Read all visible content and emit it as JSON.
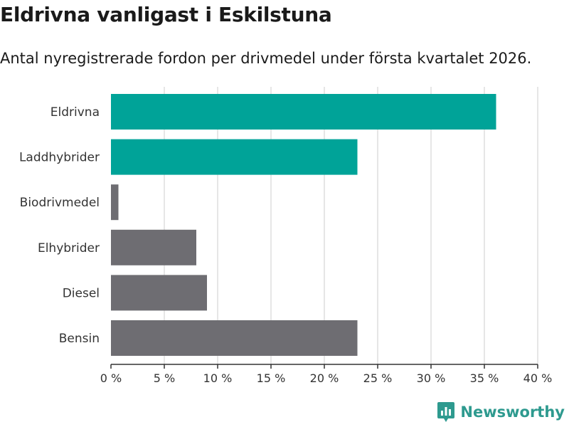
{
  "header": {
    "title": "Eldrivna vanligast i Eskilstuna",
    "subtitle": "Antal nyregistrerade fordon per drivmedel under första kvartalet 2026."
  },
  "brand": {
    "name": "Newsworthy",
    "icon": "bar-chart-logo-icon",
    "color": "#2e9a8f"
  },
  "colors": {
    "highlight": "#00a398",
    "default": "#6e6d72",
    "grid": "#dddddd",
    "axis": "#333333"
  },
  "chart_data": {
    "type": "bar",
    "orientation": "horizontal",
    "categories": [
      "Eldrivna",
      "Laddhybrider",
      "Biodrivmedel",
      "Elhybrider",
      "Diesel",
      "Bensin"
    ],
    "values": [
      36.1,
      23.1,
      0.7,
      8.0,
      9.0,
      23.1
    ],
    "highlighted": [
      true,
      true,
      false,
      false,
      false,
      false
    ],
    "xlim": [
      0,
      40
    ],
    "xticks": [
      0,
      5,
      10,
      15,
      20,
      25,
      30,
      35,
      40
    ],
    "xtick_labels": [
      "0 %",
      "5 %",
      "10 %",
      "15 %",
      "20 %",
      "25 %",
      "30 %",
      "35 %",
      "40 %"
    ],
    "unit": "%",
    "grid": "vertical"
  }
}
